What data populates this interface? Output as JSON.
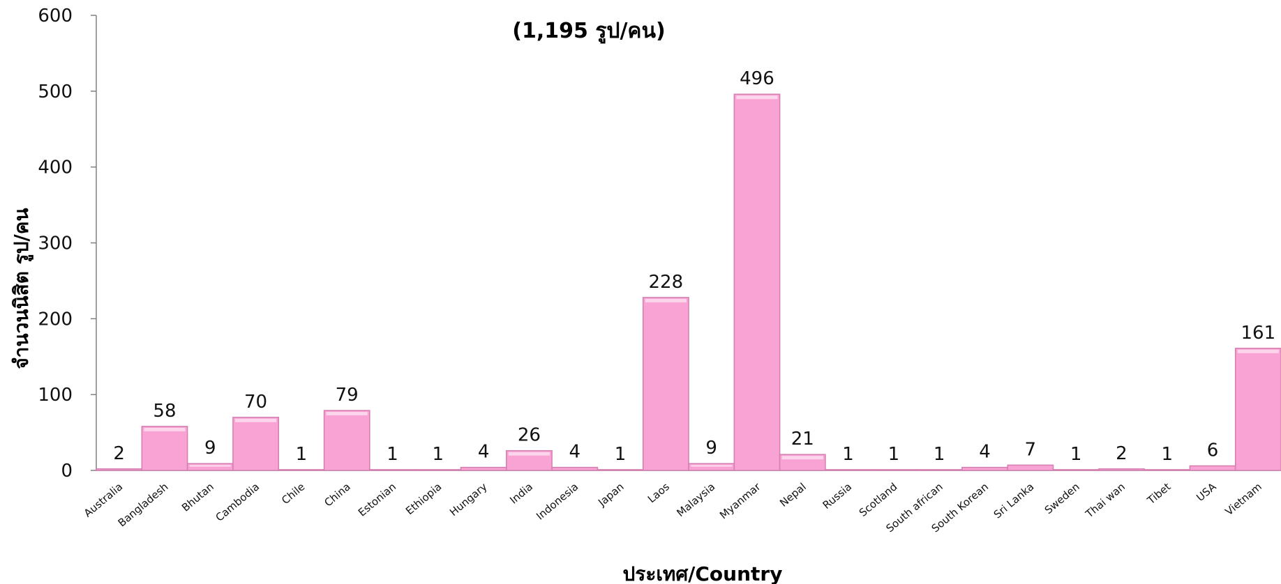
{
  "chart_data": {
    "type": "bar",
    "title_line2": "(1,195 รูป/คน)",
    "xlabel": "ประเทศ/Country",
    "ylabel": "จำนวนนิสิต รูป/คน",
    "ylim": [
      0,
      600
    ],
    "yticks": [
      0,
      100,
      200,
      300,
      400,
      500,
      600
    ],
    "grid": false,
    "bar_color": "#f9a3d4",
    "bar_edge_color": "#d47fb0",
    "categories": [
      "Australia",
      "Bangladesh",
      "Bhutan",
      "Cambodia",
      "Chile",
      "China",
      "Estonian",
      "Ethiopia",
      "Hungary",
      "India",
      "Indonesia",
      "Japan",
      "Laos",
      "Malaysia",
      "Myanmar",
      "Nepal",
      "Russia",
      "Scotland",
      "South african",
      "South Korean",
      "Sri Lanka",
      "Sweden",
      "Thai wan",
      "Tibet",
      "USA",
      "Vietnam"
    ],
    "values": [
      2,
      58,
      9,
      70,
      1,
      79,
      1,
      1,
      4,
      26,
      4,
      1,
      228,
      9,
      496,
      21,
      1,
      1,
      1,
      4,
      7,
      1,
      2,
      1,
      6,
      161
    ]
  }
}
